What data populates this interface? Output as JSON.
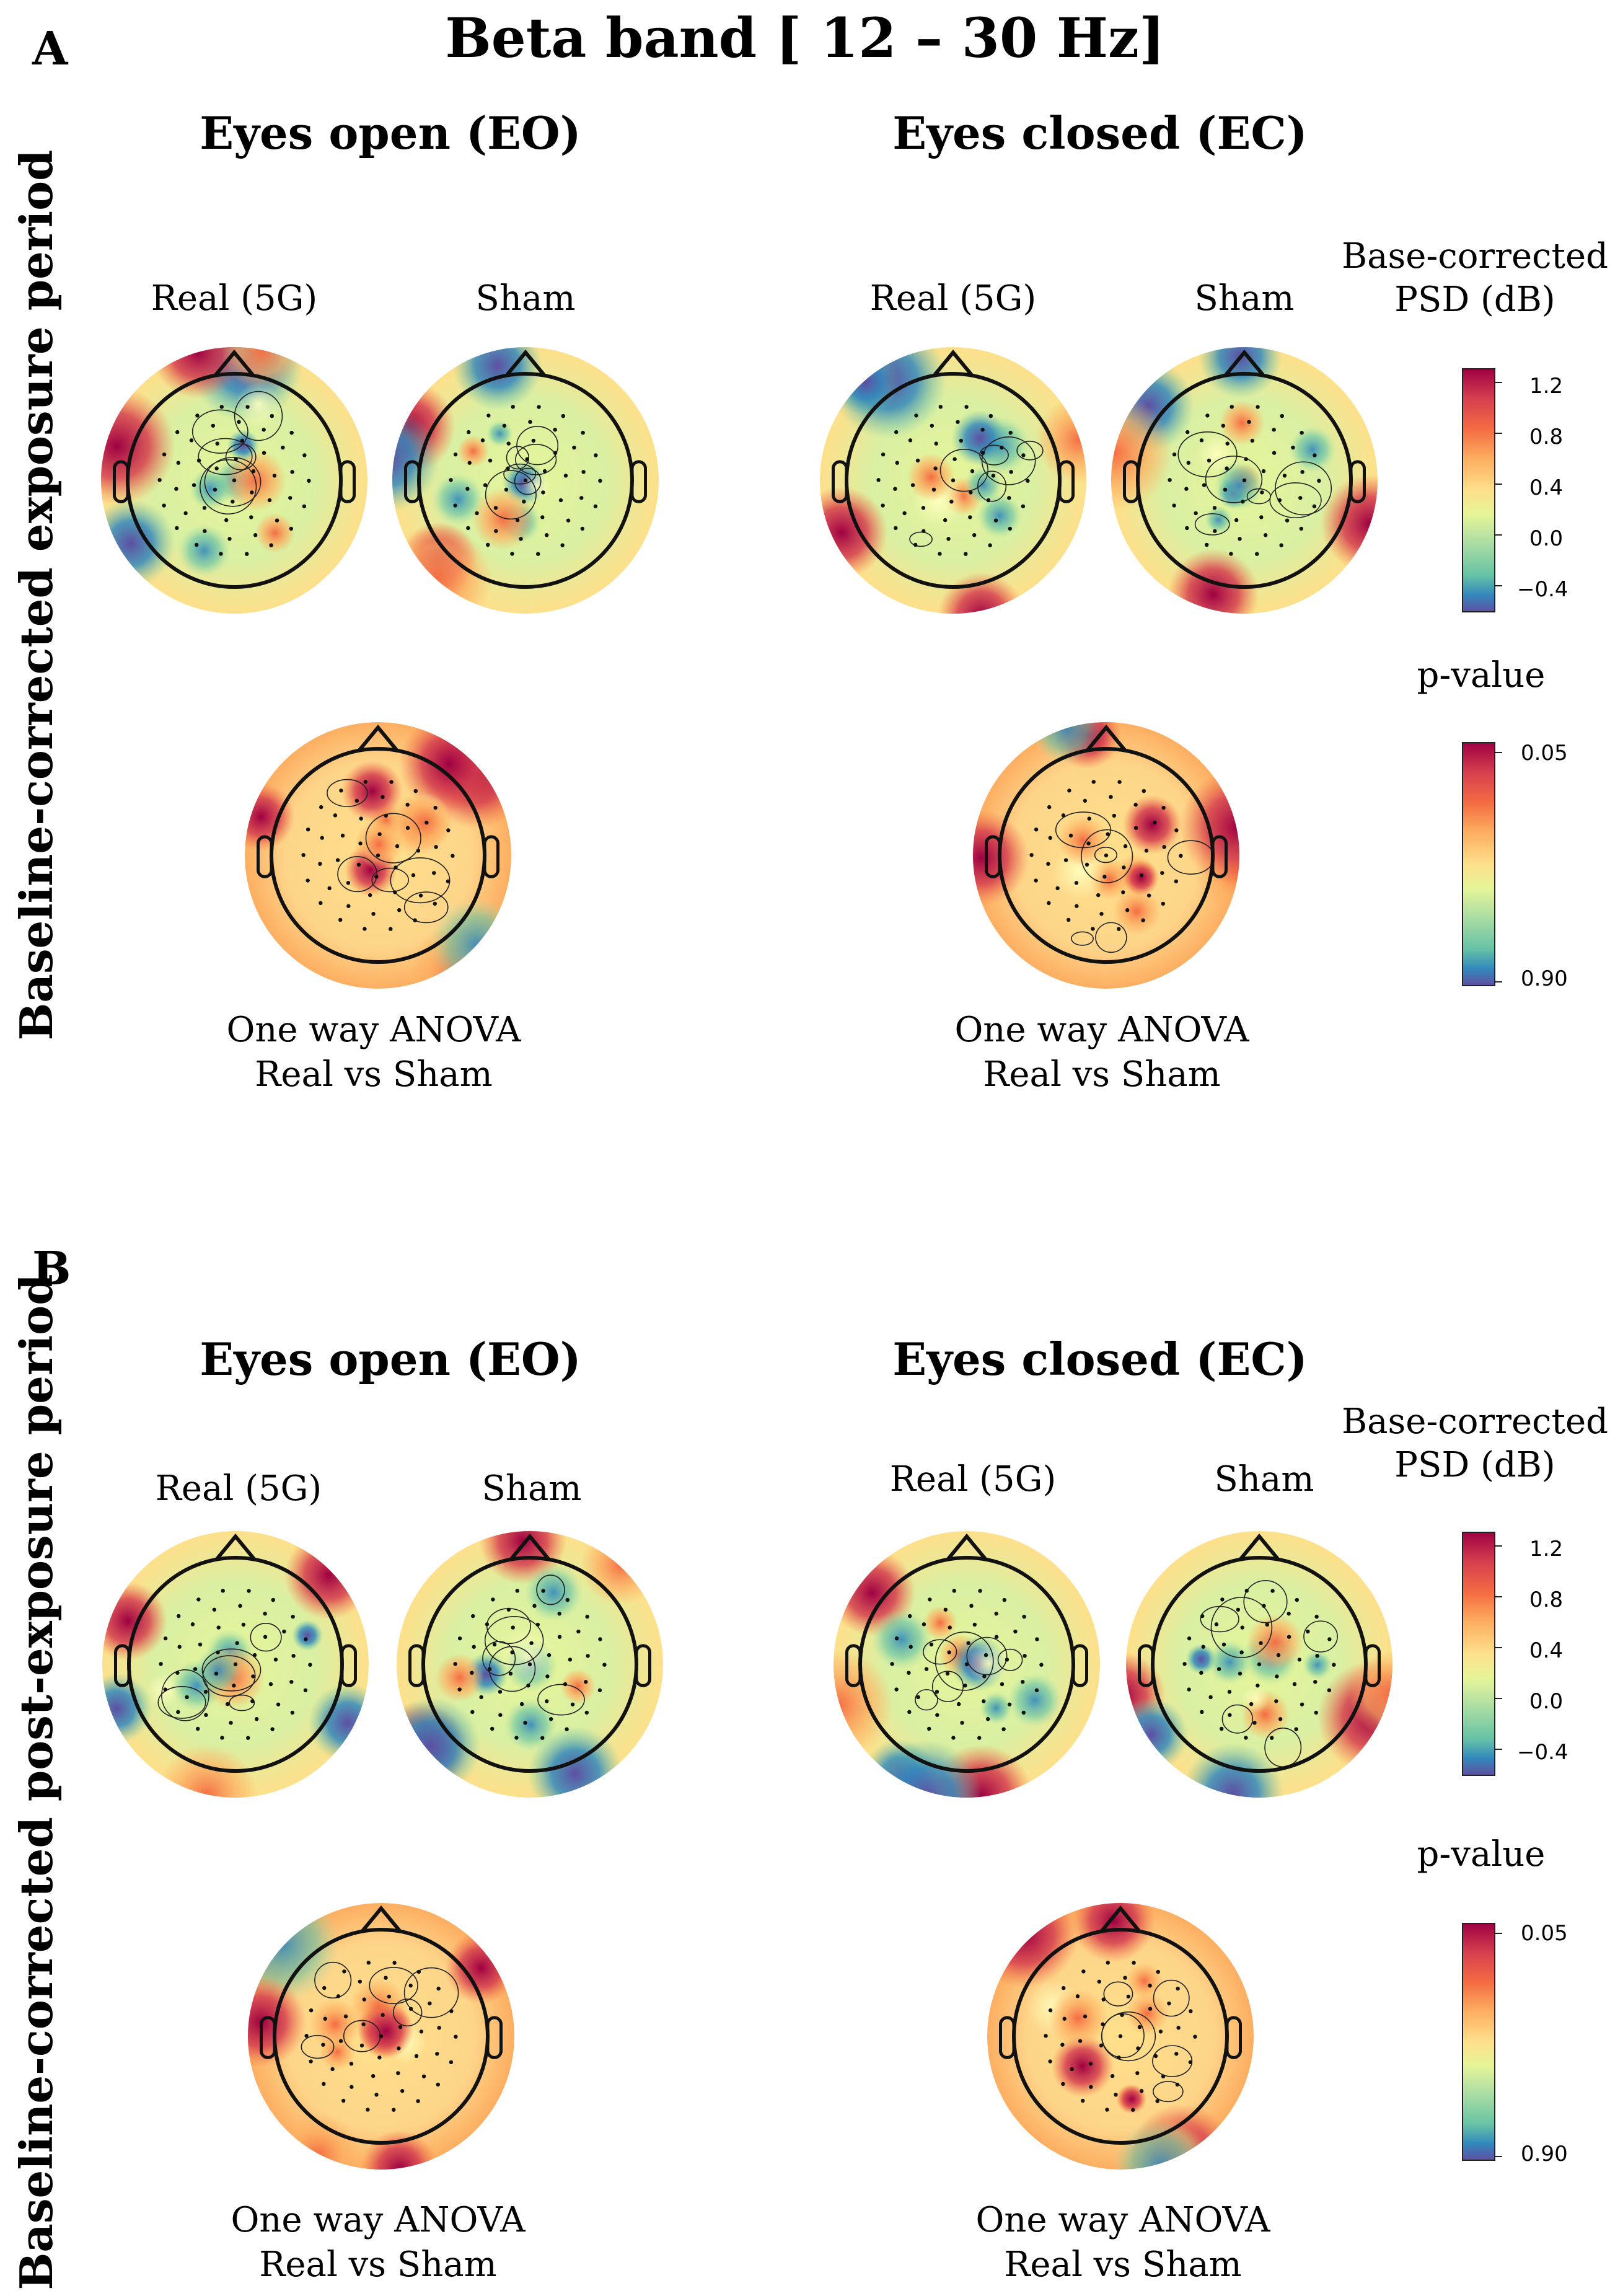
{
  "figure": {
    "title": "Beta band [ 12 – 30 Hz]",
    "panels": [
      {
        "letter": "A",
        "side_label": "Baseline-corrected exposure period",
        "conditions": [
          {
            "title": "Eyes open (EO)",
            "maps": [
              {
                "label": "Real (5G)"
              },
              {
                "label": "Sham"
              }
            ],
            "anova": {
              "line1": "One way ANOVA",
              "line2": "Real vs Sham"
            }
          },
          {
            "title": "Eyes closed (EC)",
            "maps": [
              {
                "label": "Real (5G)"
              },
              {
                "label": "Sham"
              }
            ],
            "anova": {
              "line1": "One way ANOVA",
              "line2": "Real vs Sham"
            }
          }
        ],
        "psd_colorbar": {
          "title_line1": "Base-corrected",
          "title_line2": "PSD (dB)",
          "ticks": [
            "1.2",
            "0.8",
            "0.4",
            "0.0",
            "−0.4"
          ],
          "range": [
            -0.55,
            1.35
          ]
        },
        "p_colorbar": {
          "title": "p-value",
          "ticks": [
            "0.05",
            "0.90"
          ]
        }
      },
      {
        "letter": "B",
        "side_label": "Baseline-corrected post-exposure period",
        "conditions": [
          {
            "title": "Eyes open (EO)",
            "maps": [
              {
                "label": "Real (5G)"
              },
              {
                "label": "Sham"
              }
            ],
            "anova": {
              "line1": "One way ANOVA",
              "line2": "Real vs Sham"
            }
          },
          {
            "title": "Eyes closed (EC)",
            "maps": [
              {
                "label": "Real (5G)"
              },
              {
                "label": "Sham"
              }
            ],
            "anova": {
              "line1": "One way ANOVA",
              "line2": "Real vs Sham"
            }
          }
        ],
        "psd_colorbar": {
          "title_line1": "Base-corrected",
          "title_line2": "PSD (dB)",
          "ticks": [
            "1.2",
            "0.8",
            "0.4",
            "0.0",
            "−0.4"
          ],
          "range": [
            -0.55,
            1.35
          ]
        },
        "p_colorbar": {
          "title": "p-value",
          "ticks": [
            "0.05",
            "0.90"
          ]
        }
      }
    ]
  },
  "colors": {
    "spectral_high": "#9e0142",
    "spectral_mid_high": "#f46d43",
    "spectral_mid": "#ffffbf",
    "spectral_mid_low": "#66c2a5",
    "spectral_low": "#5e4fa2"
  }
}
